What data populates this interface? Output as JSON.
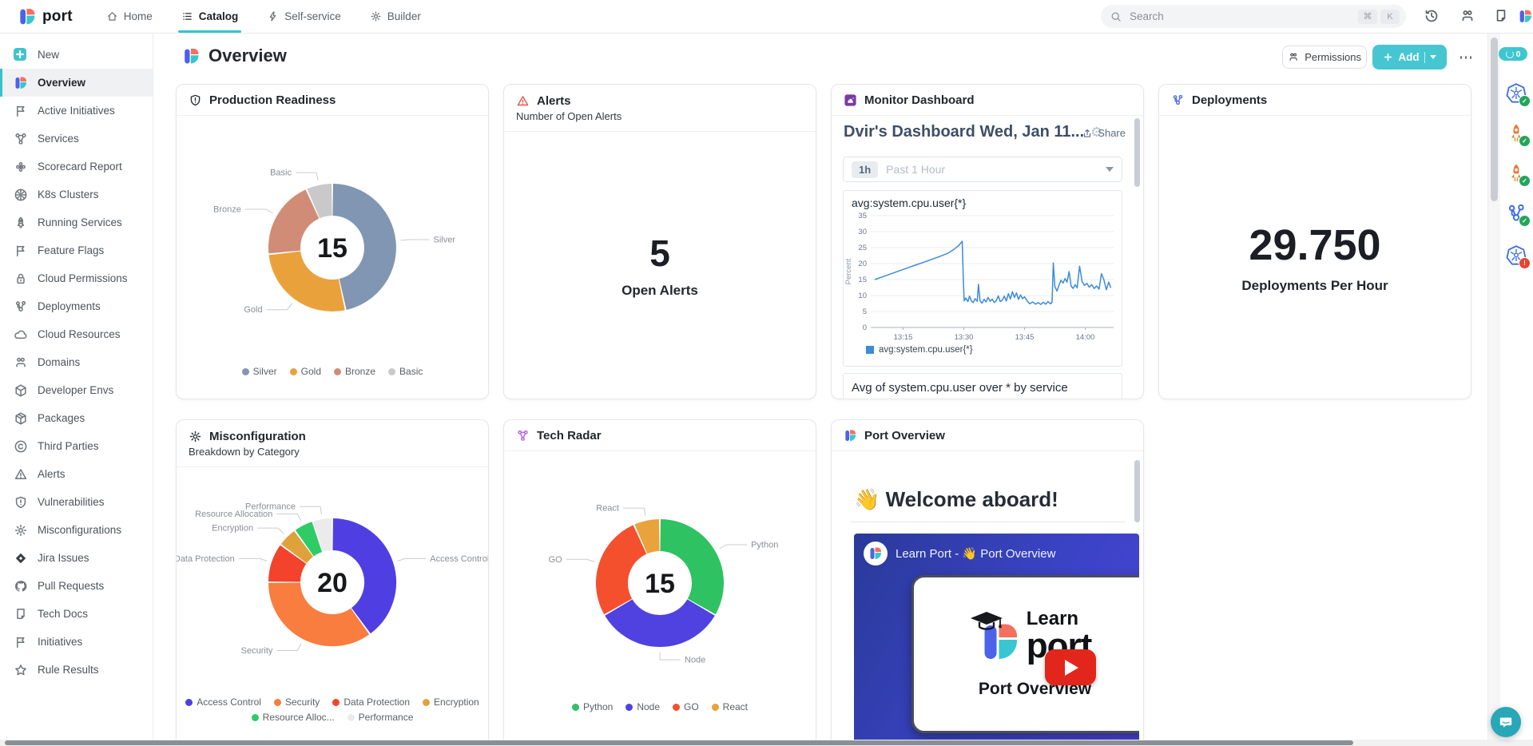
{
  "topbar": {
    "brand": "port",
    "nav": [
      {
        "label": "Home",
        "icon": "home"
      },
      {
        "label": "Catalog",
        "icon": "catalog",
        "active": true
      },
      {
        "label": "Self-service",
        "icon": "bolt"
      },
      {
        "label": "Builder",
        "icon": "gear"
      }
    ],
    "search": {
      "placeholder": "Search",
      "shortcut_keys": [
        "⌘",
        "K"
      ]
    }
  },
  "sidebar": {
    "items": [
      {
        "label": "New",
        "icon": "plus-box"
      },
      {
        "label": "Overview",
        "icon": "port",
        "active": true
      },
      {
        "label": "Active Initiatives",
        "icon": "flag"
      },
      {
        "label": "Services",
        "icon": "services"
      },
      {
        "label": "Scorecard Report",
        "icon": "scorecard"
      },
      {
        "label": "K8s Clusters",
        "icon": "k8s"
      },
      {
        "label": "Running Services",
        "icon": "rocket"
      },
      {
        "label": "Feature Flags",
        "icon": "flag"
      },
      {
        "label": "Cloud Permissions",
        "icon": "lock"
      },
      {
        "label": "Deployments",
        "icon": "deploy"
      },
      {
        "label": "Cloud Resources",
        "icon": "cloud"
      },
      {
        "label": "Domains",
        "icon": "org"
      },
      {
        "label": "Developer Envs",
        "icon": "cube"
      },
      {
        "label": "Packages",
        "icon": "package"
      },
      {
        "label": "Third Parties",
        "icon": "copyright"
      },
      {
        "label": "Alerts",
        "icon": "warn"
      },
      {
        "label": "Vulnerabilities",
        "icon": "shield"
      },
      {
        "label": "Misconfigurations",
        "icon": "gear"
      },
      {
        "label": "Jira Issues",
        "icon": "diamond"
      },
      {
        "label": "Pull Requests",
        "icon": "github"
      },
      {
        "label": "Tech Docs",
        "icon": "doc"
      },
      {
        "label": "Initiatives",
        "icon": "flag"
      },
      {
        "label": "Rule Results",
        "icon": "star"
      }
    ]
  },
  "page": {
    "title": "Overview",
    "permissions_label": "Permissions",
    "add_label": "Add"
  },
  "right_rail": {
    "badge_count": "0",
    "entities": [
      {
        "icon": "k8s-entity",
        "status": "ok"
      },
      {
        "icon": "rocket-entity",
        "status": "ok"
      },
      {
        "icon": "rocket-entity",
        "status": "ok"
      },
      {
        "icon": "deploy-entity",
        "status": "ok"
      },
      {
        "icon": "k8s-entity",
        "status": "error"
      }
    ]
  },
  "cards": {
    "production_readiness": {
      "title": "Production Readiness"
    },
    "alerts": {
      "title": "Alerts",
      "subtitle": "Number of Open Alerts",
      "value": "5",
      "value_label": "Open Alerts"
    },
    "monitor": {
      "title": "Monitor Dashboard",
      "dashboard_title": "Dvir's Dashboard Wed, Jan 11...",
      "gear_glyph": "⚙",
      "share_label": "Share",
      "time_chip": "1h",
      "time_range": "Past 1 Hour",
      "panel2_title": "Avg of system.cpu.user over * by service"
    },
    "deployments": {
      "title": "Deployments",
      "value": "29.750",
      "value_label": "Deployments Per Hour"
    },
    "misconfiguration": {
      "title": "Misconfiguration",
      "subtitle": "Breakdown by Category"
    },
    "tech_radar": {
      "title": "Tech Radar"
    },
    "port_overview": {
      "title": "Port Overview",
      "welcome": "👋 Welcome aboard!",
      "video_header": "Learn Port - 👋 Port Overview",
      "video_learn": "Learn",
      "video_wordmark": "port",
      "video_caption": "Port Overview"
    }
  },
  "chart_data": [
    {
      "id": "production-readiness-donut",
      "type": "pie",
      "title": "Production Readiness",
      "total_label": "15",
      "slices": [
        {
          "name": "Silver",
          "legend": "Silver",
          "value": 7,
          "color": "#8096B2"
        },
        {
          "name": "Gold",
          "legend": "Gold",
          "value": 4,
          "color": "#E9A23B"
        },
        {
          "name": "Bronze",
          "legend": "Bronze",
          "value": 3,
          "color": "#D08C76"
        },
        {
          "name": "Basic",
          "legend": "Basic",
          "value": 1,
          "color": "#C9C9C9"
        }
      ],
      "legend_rows": [
        [
          0,
          1,
          2,
          3
        ]
      ]
    },
    {
      "id": "misconfiguration-donut",
      "type": "pie",
      "title": "Misconfiguration Breakdown by Category",
      "total_label": "20",
      "slices": [
        {
          "name": "Access Control",
          "legend": "Access Control",
          "value": 8,
          "color": "#4F3FE3"
        },
        {
          "name": "Security",
          "legend": "Security",
          "value": 7,
          "color": "#F87D3F"
        },
        {
          "name": "Data Protection",
          "legend": "Data Protection",
          "value": 2,
          "color": "#F4432C"
        },
        {
          "name": "Encryption",
          "legend": "Encryption",
          "value": 1,
          "color": "#DFA23B"
        },
        {
          "name": "Resource Allocation",
          "legend": "Resource Alloc...",
          "value": 1,
          "color": "#2FCB66"
        },
        {
          "name": "Performance",
          "legend": "Performance",
          "value": 1,
          "color": "#EBEBEB"
        }
      ],
      "legend_rows": [
        [
          0,
          1,
          2,
          3
        ],
        [
          4,
          5
        ]
      ]
    },
    {
      "id": "tech-radar-donut",
      "type": "pie",
      "title": "Tech Radar",
      "total_label": "15",
      "slices": [
        {
          "name": "Python",
          "legend": "Python",
          "value": 5,
          "color": "#2FC262"
        },
        {
          "name": "Node",
          "legend": "Node",
          "value": 5,
          "color": "#4F42E0"
        },
        {
          "name": "GO",
          "legend": "GO",
          "value": 4,
          "color": "#F4502E"
        },
        {
          "name": "React",
          "legend": "React",
          "value": 1,
          "color": "#E8A33D"
        }
      ],
      "legend_rows": [
        [
          0,
          1,
          2,
          3
        ]
      ]
    },
    {
      "id": "cpu-line",
      "type": "line",
      "title": "avg:system.cpu.user{*}",
      "ylabel": "Percent",
      "legend": "avg:system.cpu.user{*}",
      "ylim": [
        0,
        35
      ],
      "yticks": [
        0,
        5,
        10,
        15,
        20,
        25,
        30,
        35
      ],
      "xlim": [
        7,
        67
      ],
      "xticks": [
        {
          "x": 15,
          "label": "13:15"
        },
        {
          "x": 30,
          "label": "13:30"
        },
        {
          "x": 45,
          "label": "13:45"
        },
        {
          "x": 60,
          "label": "14:00"
        }
      ],
      "color": "#3C8BDB",
      "points": [
        [
          8,
          15
        ],
        [
          10,
          15.9
        ],
        [
          12,
          16.8
        ],
        [
          14,
          17.7
        ],
        [
          16,
          18.6
        ],
        [
          18,
          19.5
        ],
        [
          20,
          20.4
        ],
        [
          22,
          21.3
        ],
        [
          24,
          22.2
        ],
        [
          26,
          23.2
        ],
        [
          27.5,
          24.4
        ],
        [
          28.7,
          25.6
        ],
        [
          29.6,
          27
        ],
        [
          29.9,
          14
        ],
        [
          30.1,
          8.3
        ],
        [
          30.5,
          9.2
        ],
        [
          31,
          8.1
        ],
        [
          31.4,
          9.8
        ],
        [
          31.8,
          8.4
        ],
        [
          32.3,
          7.8
        ],
        [
          32.8,
          9
        ],
        [
          33.3,
          8.2
        ],
        [
          33.6,
          13.5
        ],
        [
          34,
          8.4
        ],
        [
          34.5,
          7.6
        ],
        [
          35,
          8.8
        ],
        [
          35.5,
          8
        ],
        [
          36,
          9.4
        ],
        [
          36.5,
          8.2
        ],
        [
          37,
          8.9
        ],
        [
          37.5,
          7.8
        ],
        [
          38,
          8.4
        ],
        [
          38.5,
          9.9
        ],
        [
          39,
          8.1
        ],
        [
          39.5,
          8.6
        ],
        [
          40,
          9.8
        ],
        [
          40.5,
          8.3
        ],
        [
          41,
          10.6
        ],
        [
          41.5,
          8.9
        ],
        [
          42,
          11.2
        ],
        [
          42.5,
          9.4
        ],
        [
          43,
          10.8
        ],
        [
          43.5,
          8.8
        ],
        [
          44,
          10.2
        ],
        [
          44.5,
          9
        ],
        [
          45,
          9.6
        ],
        [
          45.7,
          8.2
        ],
        [
          46.3,
          7.4
        ],
        [
          47,
          8
        ],
        [
          47.7,
          7.3
        ],
        [
          48.4,
          7.8
        ],
        [
          49,
          7.2
        ],
        [
          49.6,
          7.9
        ],
        [
          50.2,
          7.3
        ],
        [
          50.8,
          8.1
        ],
        [
          51.4,
          7.4
        ],
        [
          51.8,
          8
        ],
        [
          52.1,
          20.2
        ],
        [
          52.5,
          12.8
        ],
        [
          53,
          11.4
        ],
        [
          53.5,
          13.2
        ],
        [
          54,
          14.8
        ],
        [
          54.5,
          13.9
        ],
        [
          55,
          15.3
        ],
        [
          55.5,
          14.2
        ],
        [
          56,
          17.5
        ],
        [
          56.5,
          13
        ],
        [
          57,
          12.2
        ],
        [
          57.5,
          13.4
        ],
        [
          58,
          12.4
        ],
        [
          58.6,
          19.2
        ],
        [
          59.2,
          14.4
        ],
        [
          59.8,
          13.2
        ],
        [
          60.4,
          13.8
        ],
        [
          61,
          12.6
        ],
        [
          61.6,
          13.4
        ],
        [
          62.2,
          12.2
        ],
        [
          62.8,
          13
        ],
        [
          63.4,
          12
        ],
        [
          64,
          16.8
        ],
        [
          64.6,
          15
        ],
        [
          65.2,
          11.8
        ],
        [
          65.8,
          14.2
        ],
        [
          66.3,
          12.4
        ]
      ]
    }
  ]
}
